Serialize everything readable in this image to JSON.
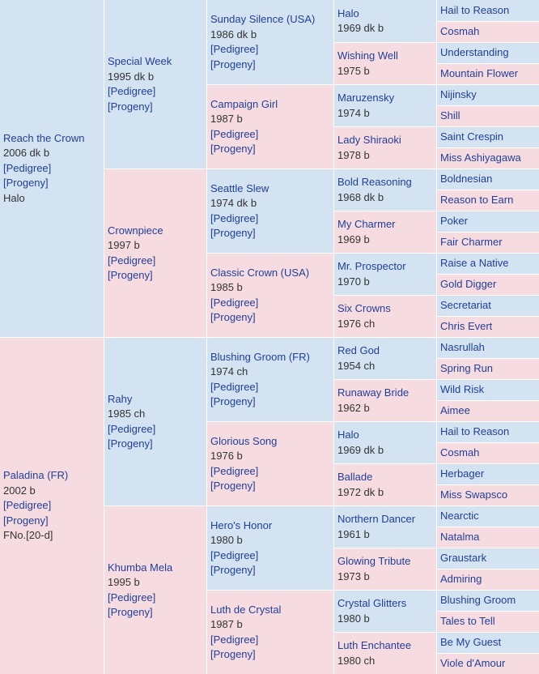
{
  "generations": [
    [
      {
        "name": "Reach the Crown",
        "year": "2006 dk b",
        "links": [
          "[Pedigree]",
          "[Progeny]"
        ],
        "extra": "Halo"
      },
      {
        "name": "Paladina (FR)",
        "year": "2002 b",
        "links": [
          "[Pedigree]",
          "[Progeny]"
        ],
        "extra": "FNo.[20-d]"
      }
    ],
    [
      {
        "name": "Special Week",
        "year": "1995 dk b",
        "links": [
          "[Pedigree]",
          "[Progeny]"
        ]
      },
      {
        "name": "Crownpiece",
        "year": "1997 b",
        "links": [
          "[Pedigree]",
          "[Progeny]"
        ]
      },
      {
        "name": "Rahy",
        "year": "1985 ch",
        "links": [
          "[Pedigree]",
          "[Progeny]"
        ]
      },
      {
        "name": "Khumba Mela",
        "year": "1995 b",
        "links": [
          "[Pedigree]",
          "[Progeny]"
        ]
      }
    ],
    [
      {
        "name": "Sunday Silence (USA)",
        "year": "1986 dk b",
        "links": [
          "[Pedigree]",
          "[Progeny]"
        ]
      },
      {
        "name": "Campaign Girl",
        "year": "1987 b",
        "links": [
          "[Pedigree]",
          "[Progeny]"
        ]
      },
      {
        "name": "Seattle Slew",
        "year": "1974 dk b",
        "links": [
          "[Pedigree]",
          "[Progeny]"
        ]
      },
      {
        "name": "Classic Crown (USA)",
        "year": "1985 b",
        "links": [
          "[Pedigree]",
          "[Progeny]"
        ]
      },
      {
        "name": "Blushing Groom (FR)",
        "year": "1974 ch",
        "links": [
          "[Pedigree]",
          "[Progeny]"
        ]
      },
      {
        "name": "Glorious Song",
        "year": "1976 b",
        "links": [
          "[Pedigree]",
          "[Progeny]"
        ]
      },
      {
        "name": "Hero's Honor",
        "year": "1980 b",
        "links": [
          "[Pedigree]",
          "[Progeny]"
        ]
      },
      {
        "name": "Luth de Crystal",
        "year": "1987 b",
        "links": [
          "[Pedigree]",
          "[Progeny]"
        ]
      }
    ],
    [
      {
        "name": "Halo",
        "year": "1969 dk b"
      },
      {
        "name": "Wishing Well",
        "year": "1975 b"
      },
      {
        "name": "Maruzensky",
        "year": "1974 b"
      },
      {
        "name": "Lady Shiraoki",
        "year": "1978 b"
      },
      {
        "name": "Bold Reasoning",
        "year": "1968 dk b"
      },
      {
        "name": "My Charmer",
        "year": "1969 b"
      },
      {
        "name": "Mr. Prospector",
        "year": "1970 b"
      },
      {
        "name": "Six Crowns",
        "year": "1976 ch"
      },
      {
        "name": "Red God",
        "year": "1954 ch"
      },
      {
        "name": "Runaway Bride",
        "year": "1962 b"
      },
      {
        "name": "Halo",
        "year": "1969 dk b"
      },
      {
        "name": "Ballade",
        "year": "1972 dk b"
      },
      {
        "name": "Northern Dancer",
        "year": "1961 b"
      },
      {
        "name": "Glowing Tribute",
        "year": "1973 b"
      },
      {
        "name": "Crystal Glitters",
        "year": "1980 b"
      },
      {
        "name": "Luth Enchantee",
        "year": "1980 ch"
      }
    ],
    [
      {
        "name": "Hail to Reason"
      },
      {
        "name": "Cosmah"
      },
      {
        "name": "Understanding"
      },
      {
        "name": "Mountain Flower"
      },
      {
        "name": "Nijinsky"
      },
      {
        "name": "Shill"
      },
      {
        "name": "Saint Crespin"
      },
      {
        "name": "Miss Ashiyagawa"
      },
      {
        "name": "Boldnesian"
      },
      {
        "name": "Reason to Earn"
      },
      {
        "name": "Poker"
      },
      {
        "name": "Fair Charmer"
      },
      {
        "name": "Raise a Native"
      },
      {
        "name": "Gold Digger"
      },
      {
        "name": "Secretariat"
      },
      {
        "name": "Chris Evert"
      },
      {
        "name": "Nasrullah"
      },
      {
        "name": "Spring Run"
      },
      {
        "name": "Wild Risk"
      },
      {
        "name": "Aimee"
      },
      {
        "name": "Hail to Reason"
      },
      {
        "name": "Cosmah"
      },
      {
        "name": "Herbager"
      },
      {
        "name": "Miss Swapsco"
      },
      {
        "name": "Nearctic"
      },
      {
        "name": "Natalma"
      },
      {
        "name": "Graustark"
      },
      {
        "name": "Admiring"
      },
      {
        "name": "Blushing Groom"
      },
      {
        "name": "Tales to Tell"
      },
      {
        "name": "Be My Guest"
      },
      {
        "name": "Viole d'Amour"
      }
    ]
  ]
}
